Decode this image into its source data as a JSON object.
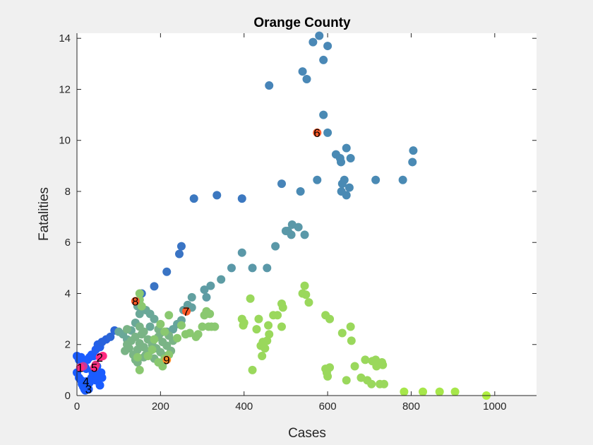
{
  "chart_data": {
    "type": "scatter",
    "title": "Orange County",
    "xlabel": "Cases",
    "ylabel": "Fatalities",
    "xlim": [
      0,
      1100
    ],
    "ylim": [
      0,
      14.2
    ],
    "xticks": [
      0,
      200,
      400,
      600,
      800,
      1000
    ],
    "yticks": [
      0,
      2,
      4,
      6,
      8,
      10,
      12,
      14
    ],
    "grid": false,
    "legend": "none",
    "colors": {
      "background": "#f0f0f0",
      "axes_bg": "#ffffff",
      "axis": "#262626",
      "highlight": "#ff5a28",
      "highlight_pink": "#ff2a7f"
    },
    "points": [
      {
        "x": 0,
        "y": 1.55,
        "c": "#1a5cff"
      },
      {
        "x": 5,
        "y": 1.4,
        "c": "#1a5cff"
      },
      {
        "x": 10,
        "y": 1.5,
        "c": "#1a5cff"
      },
      {
        "x": 15,
        "y": 1.3,
        "c": "#1a5cff"
      },
      {
        "x": 20,
        "y": 1.1,
        "c": "#1a5cff"
      },
      {
        "x": 25,
        "y": 1.4,
        "c": "#1a5cff"
      },
      {
        "x": 30,
        "y": 1.5,
        "c": "#1a5cff"
      },
      {
        "x": 35,
        "y": 1.6,
        "c": "#1a5cff"
      },
      {
        "x": 40,
        "y": 1.55,
        "c": "#1a5cff"
      },
      {
        "x": 45,
        "y": 1.8,
        "c": "#1f5ef5"
      },
      {
        "x": 50,
        "y": 2.0,
        "c": "#2460e8"
      },
      {
        "x": 55,
        "y": 1.9,
        "c": "#2460e8"
      },
      {
        "x": 60,
        "y": 2.1,
        "c": "#2862dc"
      },
      {
        "x": 70,
        "y": 2.2,
        "c": "#2862dc"
      },
      {
        "x": 80,
        "y": 2.3,
        "c": "#2c66d6"
      },
      {
        "x": 90,
        "y": 2.55,
        "c": "#2c66d6"
      },
      {
        "x": 0,
        "y": 0.9,
        "c": "#1a5cff"
      },
      {
        "x": 5,
        "y": 0.7,
        "c": "#1a5cff"
      },
      {
        "x": 10,
        "y": 0.6,
        "c": "#1a5cff"
      },
      {
        "x": 12,
        "y": 0.45,
        "c": "#1a5cff"
      },
      {
        "x": 15,
        "y": 0.35,
        "c": "#1a5cff"
      },
      {
        "x": 18,
        "y": 0.25,
        "c": "#1a5cff"
      },
      {
        "x": 20,
        "y": 0.2,
        "c": "#1a5cff"
      },
      {
        "x": 25,
        "y": 0.3,
        "c": "#1a5cff"
      },
      {
        "x": 30,
        "y": 0.5,
        "c": "#1a5cff"
      },
      {
        "x": 35,
        "y": 0.7,
        "c": "#1a5cff"
      },
      {
        "x": 38,
        "y": 0.9,
        "c": "#1a5cff"
      },
      {
        "x": 40,
        "y": 1.0,
        "c": "#1a5cff"
      },
      {
        "x": 45,
        "y": 0.6,
        "c": "#1a5cff"
      },
      {
        "x": 50,
        "y": 0.8,
        "c": "#1a5cff"
      },
      {
        "x": 55,
        "y": 0.4,
        "c": "#1a5cff"
      },
      {
        "x": 58,
        "y": 0.9,
        "c": "#1a5cff"
      },
      {
        "x": 60,
        "y": 0.7,
        "c": "#1a5cff"
      },
      {
        "x": 48,
        "y": 1.15,
        "c": "#1a5cff"
      },
      {
        "x": 22,
        "y": 1.05,
        "c": "#1a5cff"
      },
      {
        "x": 215,
        "y": 4.85,
        "c": "#3a74c4"
      },
      {
        "x": 245,
        "y": 5.55,
        "c": "#3a74c4"
      },
      {
        "x": 250,
        "y": 5.85,
        "c": "#3a74c4"
      },
      {
        "x": 185,
        "y": 4.28,
        "c": "#3a74c4"
      },
      {
        "x": 155,
        "y": 4.0,
        "c": "#3a74c4"
      },
      {
        "x": 280,
        "y": 7.72,
        "c": "#3c78c0"
      },
      {
        "x": 335,
        "y": 7.85,
        "c": "#3c78c0"
      },
      {
        "x": 395,
        "y": 7.72,
        "c": "#3c78c0"
      },
      {
        "x": 460,
        "y": 12.15,
        "c": "#4784b8"
      },
      {
        "x": 490,
        "y": 8.3,
        "c": "#4784b8"
      },
      {
        "x": 540,
        "y": 12.7,
        "c": "#4a88b6"
      },
      {
        "x": 550,
        "y": 12.4,
        "c": "#4a88b6"
      },
      {
        "x": 565,
        "y": 13.85,
        "c": "#4a88b6"
      },
      {
        "x": 580,
        "y": 14.1,
        "c": "#4a88b6"
      },
      {
        "x": 590,
        "y": 13.15,
        "c": "#4a88b6"
      },
      {
        "x": 600,
        "y": 13.7,
        "c": "#4a88b6"
      },
      {
        "x": 590,
        "y": 11.0,
        "c": "#4a8ab4"
      },
      {
        "x": 600,
        "y": 10.3,
        "c": "#4a8ab4"
      },
      {
        "x": 620,
        "y": 9.45,
        "c": "#4a8ab4"
      },
      {
        "x": 630,
        "y": 9.3,
        "c": "#4a8ab4"
      },
      {
        "x": 632,
        "y": 9.15,
        "c": "#4a8ab4"
      },
      {
        "x": 645,
        "y": 9.7,
        "c": "#4a8ab4"
      },
      {
        "x": 655,
        "y": 9.3,
        "c": "#4a8ab4"
      },
      {
        "x": 640,
        "y": 8.45,
        "c": "#4a8ab4"
      },
      {
        "x": 635,
        "y": 8.3,
        "c": "#4a8ab4"
      },
      {
        "x": 633,
        "y": 8.0,
        "c": "#4a8ab4"
      },
      {
        "x": 645,
        "y": 7.85,
        "c": "#4a8ab4"
      },
      {
        "x": 652,
        "y": 8.15,
        "c": "#4a8ab4"
      },
      {
        "x": 575,
        "y": 8.45,
        "c": "#4a8ab4"
      },
      {
        "x": 535,
        "y": 8.0,
        "c": "#4a8ab4"
      },
      {
        "x": 715,
        "y": 8.45,
        "c": "#4a8ab4"
      },
      {
        "x": 780,
        "y": 8.45,
        "c": "#4a8ab4"
      },
      {
        "x": 805,
        "y": 9.6,
        "c": "#4a8ab4"
      },
      {
        "x": 803,
        "y": 9.15,
        "c": "#4a8ab4"
      },
      {
        "x": 395,
        "y": 5.6,
        "c": "#5a98a8"
      },
      {
        "x": 370,
        "y": 5.0,
        "c": "#5a98a8"
      },
      {
        "x": 420,
        "y": 5.0,
        "c": "#5a98a8"
      },
      {
        "x": 455,
        "y": 5.0,
        "c": "#5a98a8"
      },
      {
        "x": 475,
        "y": 5.85,
        "c": "#5a98a8"
      },
      {
        "x": 505,
        "y": 6.45,
        "c": "#5a98a8"
      },
      {
        "x": 515,
        "y": 6.7,
        "c": "#5a98a8"
      },
      {
        "x": 513,
        "y": 6.3,
        "c": "#5a98a8"
      },
      {
        "x": 530,
        "y": 6.6,
        "c": "#5a98a8"
      },
      {
        "x": 545,
        "y": 6.3,
        "c": "#5a98a8"
      },
      {
        "x": 500,
        "y": 6.45,
        "c": "#5a98a8"
      },
      {
        "x": 345,
        "y": 4.55,
        "c": "#5e9ca4"
      },
      {
        "x": 320,
        "y": 4.3,
        "c": "#5e9ca4"
      },
      {
        "x": 305,
        "y": 4.15,
        "c": "#5e9ca4"
      },
      {
        "x": 310,
        "y": 3.85,
        "c": "#5e9ca4"
      },
      {
        "x": 275,
        "y": 3.85,
        "c": "#62a0a0"
      },
      {
        "x": 265,
        "y": 3.55,
        "c": "#62a0a0"
      },
      {
        "x": 275,
        "y": 3.45,
        "c": "#62a0a0"
      },
      {
        "x": 255,
        "y": 3.35,
        "c": "#62a0a0"
      },
      {
        "x": 250,
        "y": 2.95,
        "c": "#66a49c"
      },
      {
        "x": 240,
        "y": 2.8,
        "c": "#66a49c"
      },
      {
        "x": 230,
        "y": 2.6,
        "c": "#66a49c"
      },
      {
        "x": 215,
        "y": 2.5,
        "c": "#66a49c"
      },
      {
        "x": 200,
        "y": 2.45,
        "c": "#6aa898"
      },
      {
        "x": 110,
        "y": 2.4,
        "c": "#6aa898"
      },
      {
        "x": 120,
        "y": 2.2,
        "c": "#6aa898"
      },
      {
        "x": 100,
        "y": 2.5,
        "c": "#6aa898"
      },
      {
        "x": 130,
        "y": 2.55,
        "c": "#6aa898"
      },
      {
        "x": 140,
        "y": 2.85,
        "c": "#6aa898"
      },
      {
        "x": 150,
        "y": 3.2,
        "c": "#6aa898"
      },
      {
        "x": 145,
        "y": 3.5,
        "c": "#6aa898"
      },
      {
        "x": 165,
        "y": 3.35,
        "c": "#6aa898"
      },
      {
        "x": 175,
        "y": 3.2,
        "c": "#6aa898"
      },
      {
        "x": 185,
        "y": 3.0,
        "c": "#6aa898"
      },
      {
        "x": 175,
        "y": 2.7,
        "c": "#6aa898"
      },
      {
        "x": 115,
        "y": 1.75,
        "c": "#7ab486"
      },
      {
        "x": 120,
        "y": 2.0,
        "c": "#7ab486"
      },
      {
        "x": 125,
        "y": 1.85,
        "c": "#7ab486"
      },
      {
        "x": 130,
        "y": 2.15,
        "c": "#7ab486"
      },
      {
        "x": 135,
        "y": 1.6,
        "c": "#7ab486"
      },
      {
        "x": 140,
        "y": 2.3,
        "c": "#7ab486"
      },
      {
        "x": 145,
        "y": 1.8,
        "c": "#7ab486"
      },
      {
        "x": 150,
        "y": 2.05,
        "c": "#7ab486"
      },
      {
        "x": 155,
        "y": 2.4,
        "c": "#7ab486"
      },
      {
        "x": 160,
        "y": 1.9,
        "c": "#7ab486"
      },
      {
        "x": 165,
        "y": 1.6,
        "c": "#7ab486"
      },
      {
        "x": 170,
        "y": 2.2,
        "c": "#7ab486"
      },
      {
        "x": 175,
        "y": 1.75,
        "c": "#7ab486"
      },
      {
        "x": 180,
        "y": 2.0,
        "c": "#7ab486"
      },
      {
        "x": 185,
        "y": 1.45,
        "c": "#7ab486"
      },
      {
        "x": 190,
        "y": 1.85,
        "c": "#7ab486"
      },
      {
        "x": 195,
        "y": 2.6,
        "c": "#7ab486"
      },
      {
        "x": 200,
        "y": 1.7,
        "c": "#7ab486"
      },
      {
        "x": 205,
        "y": 2.1,
        "c": "#7ab486"
      },
      {
        "x": 210,
        "y": 1.55,
        "c": "#7ab486"
      },
      {
        "x": 215,
        "y": 1.95,
        "c": "#7ab486"
      },
      {
        "x": 220,
        "y": 2.35,
        "c": "#7ab486"
      },
      {
        "x": 225,
        "y": 1.75,
        "c": "#7ab486"
      },
      {
        "x": 230,
        "y": 2.15,
        "c": "#7ab486"
      },
      {
        "x": 120,
        "y": 2.6,
        "c": "#7ab486"
      },
      {
        "x": 150,
        "y": 2.7,
        "c": "#7ab486"
      },
      {
        "x": 160,
        "y": 2.5,
        "c": "#7ab486"
      },
      {
        "x": 195,
        "y": 2.3,
        "c": "#7ab486"
      },
      {
        "x": 145,
        "y": 1.3,
        "c": "#7ab486"
      },
      {
        "x": 160,
        "y": 1.5,
        "c": "#7ab486"
      },
      {
        "x": 140,
        "y": 1.4,
        "c": "#7ab486"
      },
      {
        "x": 150,
        "y": 4.0,
        "c": "#8ac870"
      },
      {
        "x": 155,
        "y": 3.5,
        "c": "#8ac870"
      },
      {
        "x": 150,
        "y": 3.75,
        "c": "#8ac870"
      },
      {
        "x": 150,
        "y": 1.0,
        "c": "#8ac870"
      },
      {
        "x": 145,
        "y": 1.5,
        "c": "#8ac870"
      },
      {
        "x": 170,
        "y": 1.55,
        "c": "#8ac870"
      },
      {
        "x": 195,
        "y": 1.3,
        "c": "#8ac870"
      },
      {
        "x": 205,
        "y": 1.15,
        "c": "#8ac870"
      },
      {
        "x": 210,
        "y": 1.45,
        "c": "#8ac870"
      },
      {
        "x": 220,
        "y": 1.6,
        "c": "#8ac870"
      },
      {
        "x": 180,
        "y": 1.8,
        "c": "#8ac870"
      },
      {
        "x": 185,
        "y": 2.2,
        "c": "#8ac870"
      },
      {
        "x": 200,
        "y": 2.8,
        "c": "#8ac870"
      },
      {
        "x": 210,
        "y": 2.5,
        "c": "#8ac870"
      },
      {
        "x": 220,
        "y": 3.15,
        "c": "#8ac870"
      },
      {
        "x": 240,
        "y": 2.25,
        "c": "#8ac870"
      },
      {
        "x": 250,
        "y": 2.75,
        "c": "#8ac870"
      },
      {
        "x": 260,
        "y": 2.4,
        "c": "#8ac870"
      },
      {
        "x": 270,
        "y": 2.45,
        "c": "#8ac870"
      },
      {
        "x": 285,
        "y": 2.3,
        "c": "#8ac870"
      },
      {
        "x": 290,
        "y": 2.4,
        "c": "#8ac870"
      },
      {
        "x": 300,
        "y": 2.7,
        "c": "#8ac870"
      },
      {
        "x": 305,
        "y": 3.15,
        "c": "#8ac870"
      },
      {
        "x": 310,
        "y": 3.3,
        "c": "#8ac870"
      },
      {
        "x": 318,
        "y": 3.2,
        "c": "#8ac870"
      },
      {
        "x": 315,
        "y": 2.7,
        "c": "#8ac870"
      },
      {
        "x": 322,
        "y": 2.7,
        "c": "#8ac870"
      },
      {
        "x": 330,
        "y": 2.7,
        "c": "#8ac870"
      },
      {
        "x": 395,
        "y": 3.0,
        "c": "#9ad85c"
      },
      {
        "x": 400,
        "y": 2.85,
        "c": "#9ad85c"
      },
      {
        "x": 398,
        "y": 2.75,
        "c": "#9ad85c"
      },
      {
        "x": 415,
        "y": 3.8,
        "c": "#9ad85c"
      },
      {
        "x": 420,
        "y": 1.0,
        "c": "#9ad85c"
      },
      {
        "x": 430,
        "y": 2.6,
        "c": "#9ad85c"
      },
      {
        "x": 435,
        "y": 3.0,
        "c": "#9ad85c"
      },
      {
        "x": 440,
        "y": 1.95,
        "c": "#9ad85c"
      },
      {
        "x": 443,
        "y": 1.55,
        "c": "#9ad85c"
      },
      {
        "x": 445,
        "y": 2.1,
        "c": "#9ad85c"
      },
      {
        "x": 450,
        "y": 1.85,
        "c": "#9ad85c"
      },
      {
        "x": 455,
        "y": 2.15,
        "c": "#9ad85c"
      },
      {
        "x": 460,
        "y": 2.4,
        "c": "#9ad85c"
      },
      {
        "x": 458,
        "y": 2.75,
        "c": "#9ad85c"
      },
      {
        "x": 470,
        "y": 3.15,
        "c": "#9ad85c"
      },
      {
        "x": 480,
        "y": 3.15,
        "c": "#9ad85c"
      },
      {
        "x": 490,
        "y": 3.6,
        "c": "#9ad85c"
      },
      {
        "x": 493,
        "y": 3.45,
        "c": "#9ad85c"
      },
      {
        "x": 490,
        "y": 2.7,
        "c": "#9ad85c"
      },
      {
        "x": 540,
        "y": 4.0,
        "c": "#9ad85c"
      },
      {
        "x": 545,
        "y": 4.3,
        "c": "#9ad85c"
      },
      {
        "x": 548,
        "y": 3.95,
        "c": "#9ad85c"
      },
      {
        "x": 555,
        "y": 3.65,
        "c": "#9ad85c"
      },
      {
        "x": 595,
        "y": 3.15,
        "c": "#9ad85c"
      },
      {
        "x": 605,
        "y": 3.0,
        "c": "#9ad85c"
      },
      {
        "x": 595,
        "y": 1.05,
        "c": "#9ad85c"
      },
      {
        "x": 598,
        "y": 0.9,
        "c": "#9ad85c"
      },
      {
        "x": 600,
        "y": 0.75,
        "c": "#9ad85c"
      },
      {
        "x": 605,
        "y": 1.1,
        "c": "#9ad85c"
      },
      {
        "x": 635,
        "y": 2.45,
        "c": "#9ad85c"
      },
      {
        "x": 645,
        "y": 0.6,
        "c": "#9ad85c"
      },
      {
        "x": 655,
        "y": 2.7,
        "c": "#9ad85c"
      },
      {
        "x": 657,
        "y": 2.15,
        "c": "#9ad85c"
      },
      {
        "x": 665,
        "y": 1.15,
        "c": "#9ad85c"
      },
      {
        "x": 680,
        "y": 0.7,
        "c": "#9ad85c"
      },
      {
        "x": 690,
        "y": 1.4,
        "c": "#9ad85c"
      },
      {
        "x": 695,
        "y": 0.6,
        "c": "#9ad85c"
      },
      {
        "x": 705,
        "y": 0.45,
        "c": "#9ad85c"
      },
      {
        "x": 707,
        "y": 1.35,
        "c": "#9ad85c"
      },
      {
        "x": 715,
        "y": 1.4,
        "c": "#9ad85c"
      },
      {
        "x": 717,
        "y": 1.15,
        "c": "#9ad85c"
      },
      {
        "x": 725,
        "y": 0.45,
        "c": "#9ad85c"
      },
      {
        "x": 730,
        "y": 1.3,
        "c": "#9ad85c"
      },
      {
        "x": 732,
        "y": 1.2,
        "c": "#9ad85c"
      },
      {
        "x": 735,
        "y": 0.45,
        "c": "#9ad85c"
      },
      {
        "x": 783,
        "y": 0.15,
        "c": "#a6e64a"
      },
      {
        "x": 828,
        "y": 0.15,
        "c": "#a6e64a"
      },
      {
        "x": 868,
        "y": 0.15,
        "c": "#a6e64a"
      },
      {
        "x": 905,
        "y": 0.15,
        "c": "#a6e64a"
      },
      {
        "x": 980,
        "y": 0.0,
        "c": "#b0f040"
      },
      {
        "x": 15,
        "y": 1.15,
        "c": "#c23a9a"
      },
      {
        "x": 45,
        "y": 1.2,
        "c": "#e0307a"
      },
      {
        "x": 62,
        "y": 1.55,
        "c": "#ff2a7f"
      }
    ],
    "labeled_points": [
      {
        "label": "1",
        "x": 8,
        "y": 1.1,
        "c": "#ff2a7f"
      },
      {
        "label": "2",
        "x": 55,
        "y": 1.5,
        "c": "#ff2a7f"
      },
      {
        "label": "3",
        "x": 28,
        "y": 0.25,
        "c": "#1a5cff"
      },
      {
        "label": "4",
        "x": 22,
        "y": 0.55,
        "c": "#1a5cff"
      },
      {
        "label": "5",
        "x": 42,
        "y": 1.1,
        "c": "#ff2a7f"
      },
      {
        "label": "6",
        "x": 575,
        "y": 10.3,
        "c": "#ff5a28"
      },
      {
        "label": "7",
        "x": 262,
        "y": 3.3,
        "c": "#ff5a28"
      },
      {
        "label": "8",
        "x": 140,
        "y": 3.7,
        "c": "#ff5a28"
      },
      {
        "label": "9",
        "x": 215,
        "y": 1.4,
        "c": "#ff8a28"
      }
    ]
  }
}
